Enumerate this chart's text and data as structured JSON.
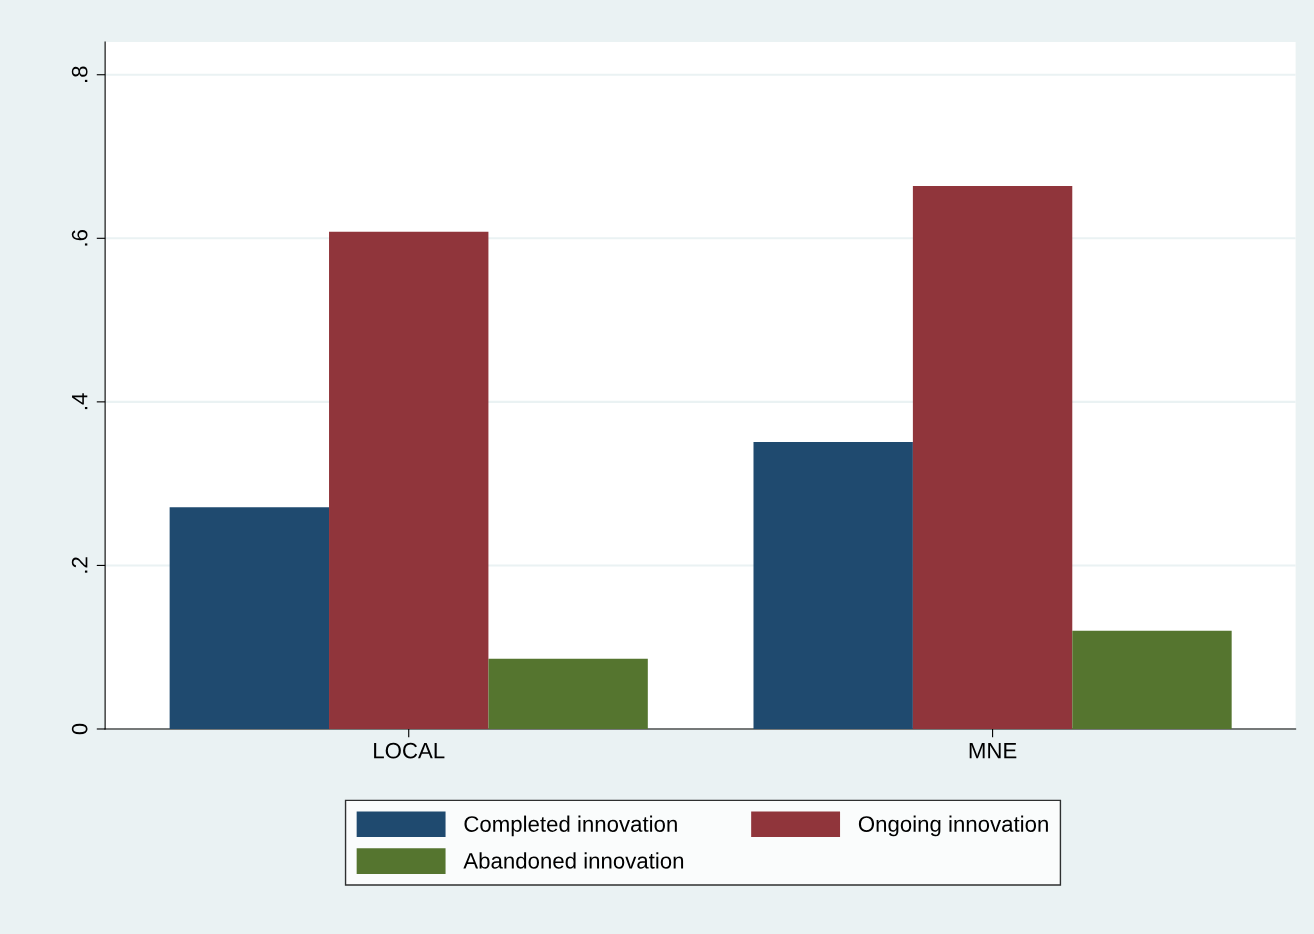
{
  "chart_data": {
    "type": "bar",
    "categories": [
      "LOCAL",
      "MNE"
    ],
    "series": [
      {
        "name": "Completed innovation",
        "color": "#1f4a6f",
        "values": [
          0.271,
          0.351
        ]
      },
      {
        "name": "Ongoing innovation",
        "color": "#90353b",
        "values": [
          0.608,
          0.664
        ]
      },
      {
        "name": "Abandoned innovation",
        "color": "#55752f",
        "values": [
          0.086,
          0.12
        ]
      }
    ],
    "ylim": [
      0,
      0.84
    ],
    "yticks": [
      {
        "value": 0,
        "label": "0"
      },
      {
        "value": 0.2,
        "label": ".2"
      },
      {
        "value": 0.4,
        "label": ".4"
      },
      {
        "value": 0.6,
        "label": ".6"
      },
      {
        "value": 0.8,
        "label": ".8"
      }
    ],
    "grid": "y",
    "legend": "bottom"
  }
}
